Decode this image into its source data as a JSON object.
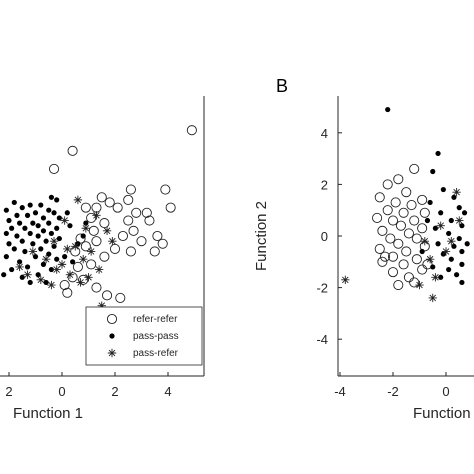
{
  "chart_data": [
    {
      "type": "scatter",
      "panel": "",
      "xlabel": "Function 1",
      "ylabel": "",
      "xlim": [
        -2.2,
        5.2
      ],
      "ylim": [
        -5.6,
        5
      ],
      "xticks": [
        "2",
        "0",
        "2",
        "4"
      ],
      "xtick_values": [
        -2,
        0,
        2,
        4
      ],
      "yticks": [],
      "grid": false,
      "legend_position": "bottom-right",
      "legend": [
        {
          "label": "refer-refer",
          "marker": "open-circle"
        },
        {
          "label": "pass-pass",
          "marker": "filled-dot"
        },
        {
          "label": "pass-refer",
          "marker": "asterisk"
        }
      ],
      "series": [
        {
          "name": "refer-refer",
          "marker": "open-circle",
          "points": [
            [
              4.9,
              4.1
            ],
            [
              0.4,
              3.3
            ],
            [
              -0.3,
              2.6
            ],
            [
              3.9,
              1.8
            ],
            [
              4.1,
              1.1
            ],
            [
              2.6,
              1.8
            ],
            [
              2.5,
              1.4
            ],
            [
              1.5,
              1.5
            ],
            [
              1.3,
              1.1
            ],
            [
              1.8,
              1.3
            ],
            [
              2.1,
              1.1
            ],
            [
              3.2,
              0.9
            ],
            [
              0.9,
              1.1
            ],
            [
              1.1,
              0.7
            ],
            [
              1.6,
              0.5
            ],
            [
              2.5,
              0.6
            ],
            [
              2.8,
              0.9
            ],
            [
              3.3,
              0.6
            ],
            [
              2.7,
              0.2
            ],
            [
              2.3,
              0.0
            ],
            [
              3.0,
              -0.2
            ],
            [
              3.6,
              0.0
            ],
            [
              3.8,
              -0.3
            ],
            [
              1.2,
              0.2
            ],
            [
              0.7,
              -0.1
            ],
            [
              0.5,
              -0.6
            ],
            [
              0.9,
              -0.4
            ],
            [
              1.3,
              -0.2
            ],
            [
              2.0,
              -0.5
            ],
            [
              2.6,
              -0.6
            ],
            [
              3.5,
              -0.6
            ],
            [
              1.6,
              -0.8
            ],
            [
              0.6,
              -1.2
            ],
            [
              0.4,
              -1.6
            ],
            [
              1.1,
              -1.1
            ],
            [
              0.1,
              -1.9
            ],
            [
              0.2,
              -2.2
            ],
            [
              1.3,
              -2.0
            ],
            [
              1.7,
              -2.3
            ],
            [
              2.2,
              -2.4
            ],
            [
              0.8,
              -1.7
            ]
          ]
        },
        {
          "name": "pass-pass",
          "marker": "filled-dot",
          "points": [
            [
              -0.4,
              1.5
            ],
            [
              -0.2,
              1.4
            ],
            [
              -1.8,
              1.3
            ],
            [
              -1.2,
              1.2
            ],
            [
              -0.8,
              1.2
            ],
            [
              -1.5,
              1.1
            ],
            [
              -0.5,
              1.0
            ],
            [
              -2.1,
              1.0
            ],
            [
              -1.0,
              0.9
            ],
            [
              -0.3,
              0.9
            ],
            [
              -1.7,
              0.8
            ],
            [
              -1.3,
              0.8
            ],
            [
              -0.7,
              0.7
            ],
            [
              -0.1,
              0.7
            ],
            [
              -2.0,
              0.6
            ],
            [
              -1.6,
              0.5
            ],
            [
              -1.1,
              0.5
            ],
            [
              -0.5,
              0.5
            ],
            [
              -0.9,
              0.4
            ],
            [
              -1.9,
              0.3
            ],
            [
              -1.4,
              0.3
            ],
            [
              -0.2,
              0.3
            ],
            [
              -0.7,
              0.2
            ],
            [
              -2.1,
              0.1
            ],
            [
              -1.2,
              0.1
            ],
            [
              -0.4,
              0.1
            ],
            [
              -1.7,
              0.0
            ],
            [
              -0.9,
              0.0
            ],
            [
              -0.1,
              -0.1
            ],
            [
              -1.5,
              -0.2
            ],
            [
              -0.6,
              -0.2
            ],
            [
              -2.0,
              -0.3
            ],
            [
              -1.1,
              -0.3
            ],
            [
              -0.3,
              -0.4
            ],
            [
              -1.8,
              -0.5
            ],
            [
              -0.8,
              -0.5
            ],
            [
              -1.4,
              -0.6
            ],
            [
              -0.5,
              -0.7
            ],
            [
              -2.1,
              -0.8
            ],
            [
              -1.0,
              -0.8
            ],
            [
              -0.2,
              -0.9
            ],
            [
              -1.6,
              -1.0
            ],
            [
              -0.7,
              -1.1
            ],
            [
              -1.3,
              -1.2
            ],
            [
              -0.4,
              -1.3
            ],
            [
              -1.9,
              -1.3
            ],
            [
              -0.9,
              -1.5
            ],
            [
              -1.5,
              -1.6
            ],
            [
              0.3,
              0.4
            ],
            [
              0.6,
              -0.3
            ],
            [
              0.1,
              -0.8
            ],
            [
              0.8,
              0.0
            ],
            [
              0.4,
              -1.0
            ],
            [
              -2.2,
              -1.5
            ],
            [
              -1.2,
              -1.8
            ],
            [
              0.2,
              0.9
            ],
            [
              -0.6,
              -1.8
            ],
            [
              0.9,
              0.5
            ]
          ]
        },
        {
          "name": "pass-refer",
          "marker": "asterisk",
          "points": [
            [
              0.6,
              1.4
            ],
            [
              1.3,
              0.8
            ],
            [
              0.1,
              0.6
            ],
            [
              0.9,
              0.3
            ],
            [
              1.7,
              0.2
            ],
            [
              -0.3,
              -0.2
            ],
            [
              0.5,
              -0.4
            ],
            [
              1.1,
              -0.6
            ],
            [
              -1.1,
              -0.6
            ],
            [
              0.2,
              -0.5
            ],
            [
              -0.6,
              -0.9
            ],
            [
              0.8,
              -0.9
            ],
            [
              1.4,
              -1.3
            ],
            [
              -0.2,
              -1.3
            ],
            [
              0.3,
              -1.5
            ],
            [
              -1.3,
              -1.5
            ],
            [
              -0.8,
              -1.7
            ],
            [
              0.7,
              -1.8
            ],
            [
              1.0,
              -1.6
            ],
            [
              -0.4,
              -1.9
            ],
            [
              1.5,
              -2.7
            ],
            [
              0.0,
              -1.1
            ],
            [
              1.9,
              -0.2
            ],
            [
              -1.6,
              -1.2
            ]
          ]
        }
      ]
    },
    {
      "type": "scatter",
      "panel": "B",
      "xlabel": "Function",
      "ylabel": "Function 2",
      "xlim": [
        -5.6,
        1
      ],
      "ylim": [
        -5.6,
        5
      ],
      "xticks": [
        "-4",
        "-2",
        "0"
      ],
      "xtick_values": [
        -4,
        -2,
        0
      ],
      "yticks": [
        "4",
        "2",
        "0",
        "-2",
        "-4"
      ],
      "ytick_values": [
        4,
        2,
        0,
        -2,
        -4
      ],
      "grid": false,
      "series": [
        {
          "name": "refer-refer",
          "marker": "open-circle",
          "points": [
            [
              -1.8,
              2.2
            ],
            [
              -1.2,
              2.6
            ],
            [
              -2.2,
              2.0
            ],
            [
              -1.5,
              1.7
            ],
            [
              -0.9,
              1.4
            ],
            [
              -2.5,
              1.5
            ],
            [
              -1.9,
              1.3
            ],
            [
              -1.3,
              1.2
            ],
            [
              -2.2,
              1.0
            ],
            [
              -1.6,
              0.9
            ],
            [
              -0.8,
              0.9
            ],
            [
              -2.6,
              0.7
            ],
            [
              -2.0,
              0.6
            ],
            [
              -1.2,
              0.6
            ],
            [
              -1.7,
              0.4
            ],
            [
              -0.9,
              0.3
            ],
            [
              -2.4,
              0.2
            ],
            [
              -1.4,
              0.1
            ],
            [
              -2.1,
              -0.1
            ],
            [
              -1.1,
              -0.1
            ],
            [
              -1.8,
              -0.3
            ],
            [
              -0.8,
              -0.4
            ],
            [
              -2.5,
              -0.5
            ],
            [
              -1.5,
              -0.6
            ],
            [
              -2.0,
              -0.8
            ],
            [
              -1.1,
              -0.9
            ],
            [
              -2.4,
              -1.0
            ],
            [
              -1.6,
              -1.1
            ],
            [
              -0.9,
              -1.3
            ],
            [
              -2.0,
              -1.4
            ],
            [
              -1.4,
              -1.6
            ],
            [
              -1.8,
              -1.9
            ],
            [
              -0.7,
              -1.1
            ],
            [
              -2.3,
              -0.8
            ],
            [
              -1.2,
              -1.8
            ]
          ]
        },
        {
          "name": "pass-pass",
          "marker": "filled-dot",
          "points": [
            [
              -2.2,
              4.9
            ],
            [
              -0.3,
              3.2
            ],
            [
              -0.5,
              2.5
            ],
            [
              -0.1,
              1.8
            ],
            [
              0.3,
              1.5
            ],
            [
              -0.6,
              1.3
            ],
            [
              0.5,
              1.1
            ],
            [
              -0.2,
              0.9
            ],
            [
              0.2,
              0.6
            ],
            [
              0.6,
              0.4
            ],
            [
              -0.4,
              0.3
            ],
            [
              0.1,
              0.1
            ],
            [
              0.5,
              -0.1
            ],
            [
              -0.3,
              -0.3
            ],
            [
              0.3,
              -0.4
            ],
            [
              0.6,
              -0.6
            ],
            [
              -0.1,
              -0.7
            ],
            [
              0.2,
              -0.9
            ],
            [
              0.6,
              -1.1
            ],
            [
              -0.5,
              -1.2
            ],
            [
              0.1,
              -1.3
            ],
            [
              0.4,
              -1.5
            ],
            [
              -0.2,
              -1.6
            ],
            [
              0.6,
              -1.8
            ],
            [
              -0.7,
              0.6
            ],
            [
              -0.9,
              -0.6
            ],
            [
              0.7,
              0.9
            ],
            [
              0.8,
              -0.3
            ]
          ]
        },
        {
          "name": "pass-refer",
          "marker": "asterisk",
          "points": [
            [
              -3.8,
              -1.7
            ],
            [
              -0.5,
              -2.4
            ],
            [
              -1.0,
              -1.9
            ],
            [
              -0.6,
              -0.9
            ],
            [
              -0.2,
              0.4
            ],
            [
              0.4,
              1.7
            ],
            [
              -0.8,
              -0.2
            ],
            [
              0.2,
              -0.2
            ],
            [
              0.5,
              0.6
            ],
            [
              -0.4,
              -1.6
            ],
            [
              0.0,
              -0.6
            ]
          ]
        }
      ]
    }
  ]
}
